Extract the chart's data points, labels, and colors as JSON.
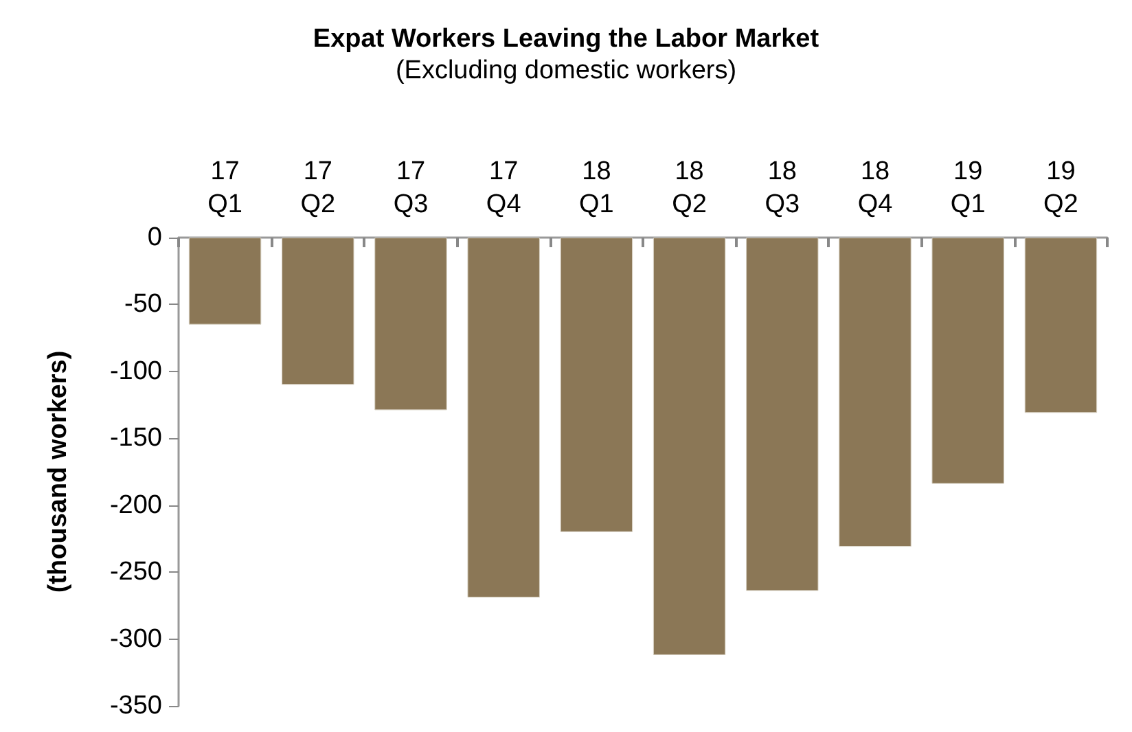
{
  "chart_data": {
    "type": "bar",
    "title": "Expat Workers Leaving the Labor Market",
    "subtitle": "(Excluding domestic workers)",
    "ylabel": "(thousand workers)",
    "categories": [
      "17\nQ1",
      "17\nQ2",
      "17\nQ3",
      "17\nQ4",
      "18\nQ1",
      "18\nQ2",
      "18\nQ3",
      "18\nQ4",
      "19\nQ1",
      "19\nQ2"
    ],
    "values": [
      -65,
      -110,
      -129,
      -269,
      -220,
      -312,
      -264,
      -231,
      -184,
      -131
    ],
    "color": "#8b7756",
    "ylim": [
      -350,
      0
    ],
    "yticks": [
      0,
      -50,
      -100,
      -150,
      -200,
      -250,
      -300,
      -350
    ],
    "grid": false
  }
}
